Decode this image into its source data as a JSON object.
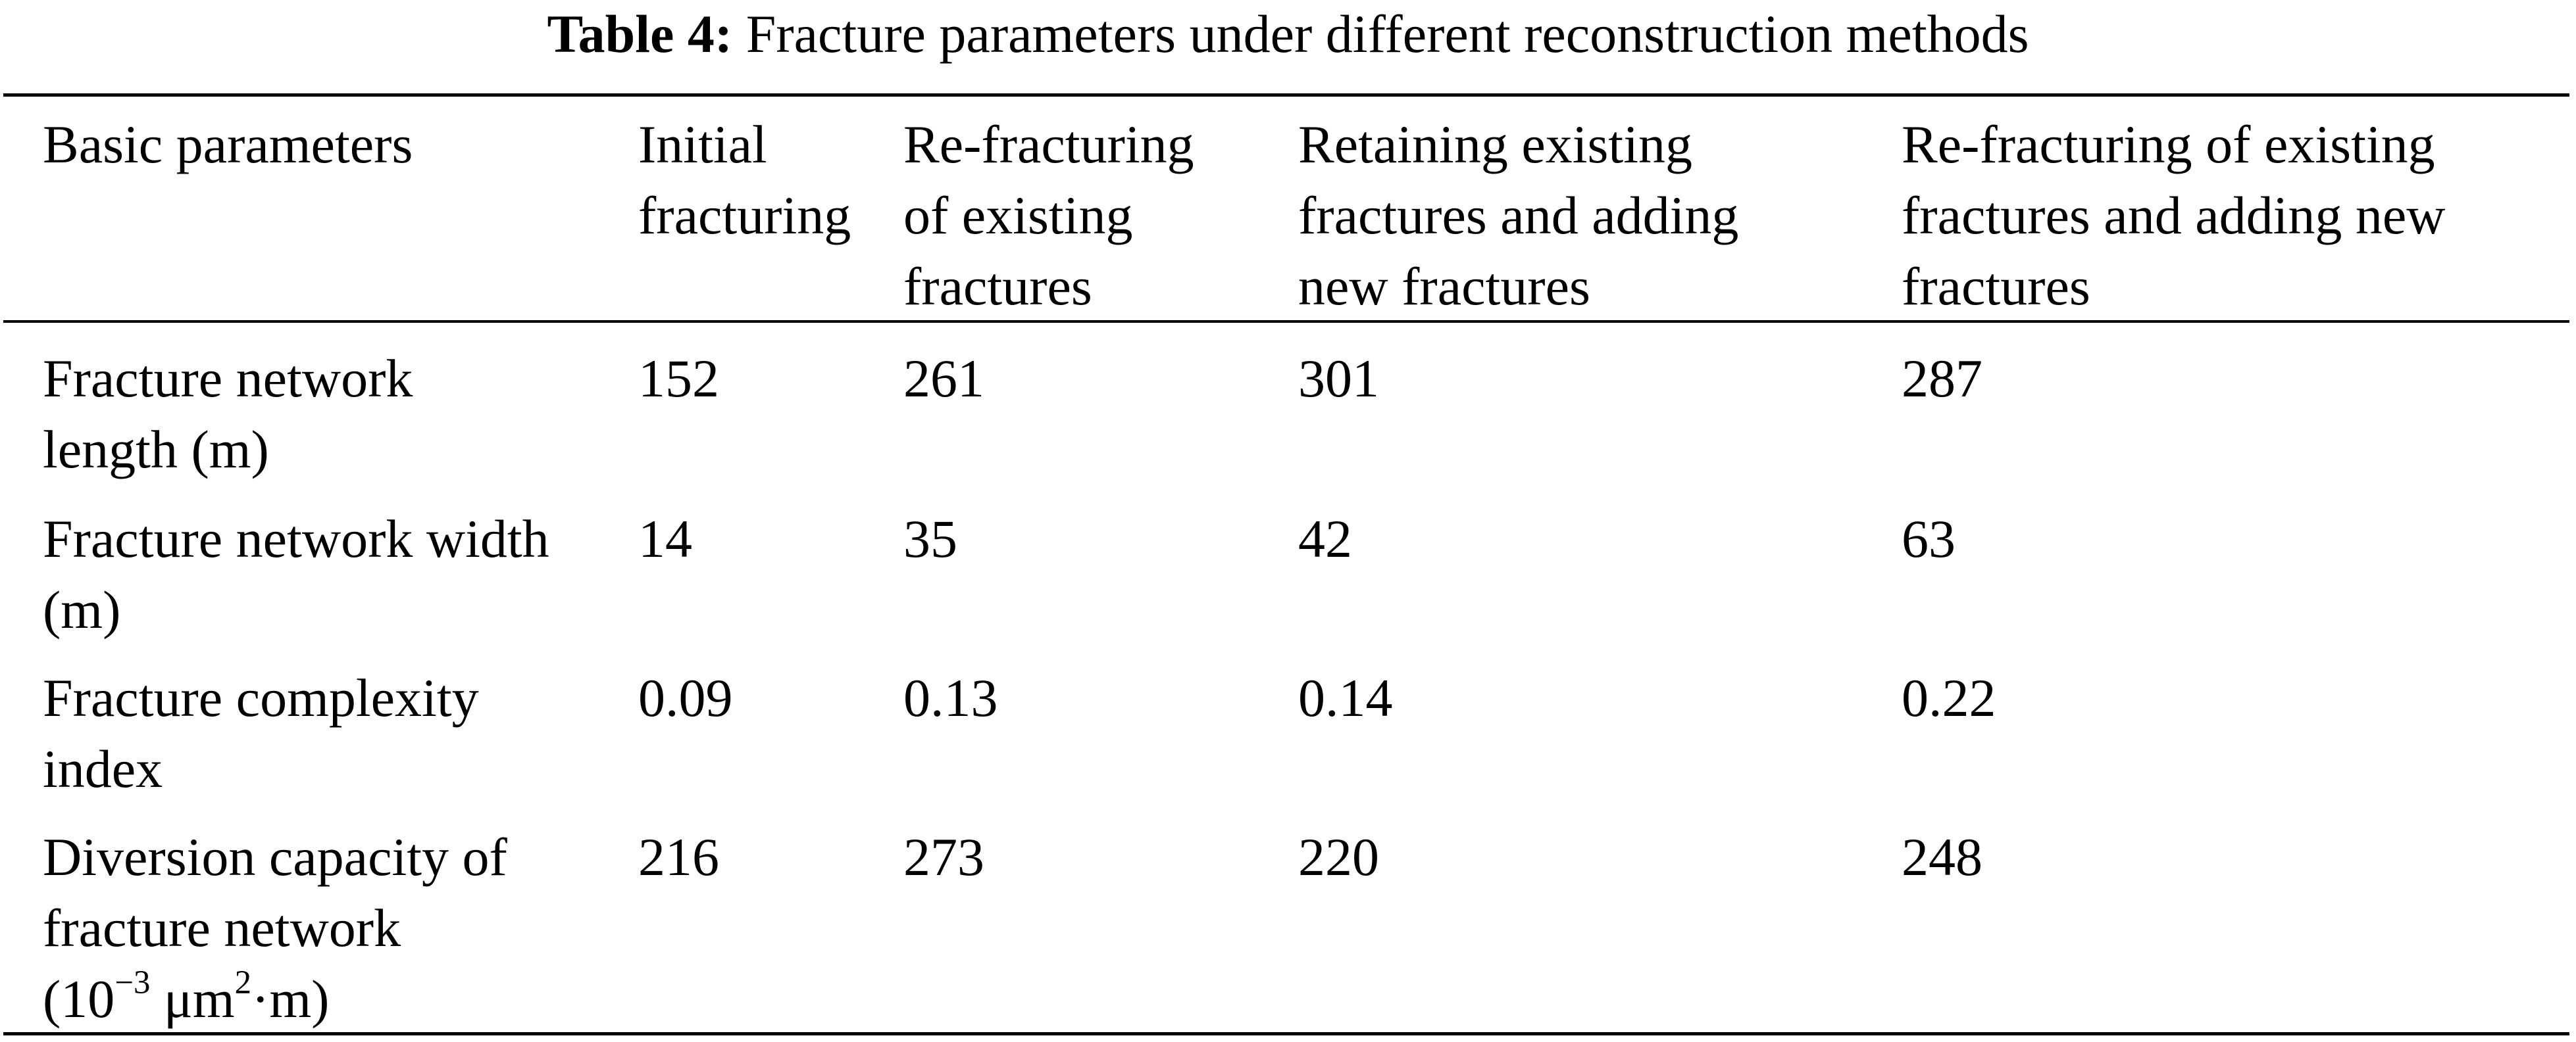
{
  "caption": {
    "label": "Table 4:",
    "text": "Fracture parameters under different reconstruction methods"
  },
  "header": [
    [
      "Basic parameters"
    ],
    [
      "Initial",
      "fracturing"
    ],
    [
      "Re-fracturing",
      "of existing",
      "fractures"
    ],
    [
      "Retaining existing",
      "fractures and adding",
      "new fractures"
    ],
    [
      "Re-fracturing of existing",
      "fractures and adding new",
      "fractures"
    ]
  ],
  "rows": [
    {
      "param": [
        "Fracture network",
        "length (m)"
      ],
      "values": [
        "152",
        "261",
        "301",
        "287"
      ]
    },
    {
      "param": [
        "Fracture network width",
        "(m)"
      ],
      "values": [
        "14",
        "35",
        "42",
        "63"
      ]
    },
    {
      "param": [
        "Fracture complexity",
        "index"
      ],
      "values": [
        "0.09",
        "0.13",
        "0.14",
        "0.22"
      ]
    },
    {
      "param": [
        "Diversion capacity of",
        "fracture network"
      ],
      "unit": {
        "prefix": "(10",
        "exp1": "−3",
        "mid": " μm",
        "exp2": "2",
        "suffix": "·m)"
      },
      "values": [
        "216",
        "273",
        "220",
        "248"
      ]
    }
  ]
}
